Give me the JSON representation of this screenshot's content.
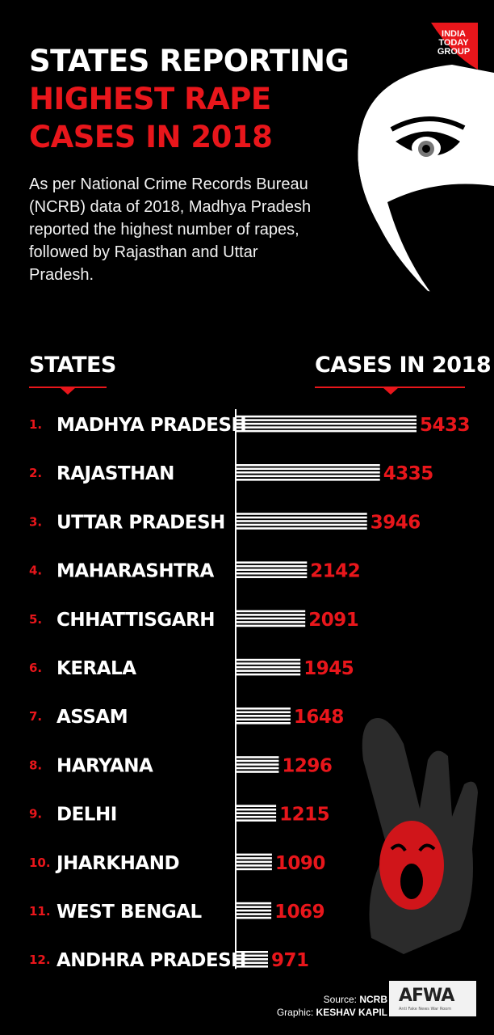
{
  "header": {
    "title_line1": "STATES REPORTING",
    "title_line2": "HIGHEST RAPE",
    "title_line3": "CASES IN 2018",
    "intro": "As per National Crime Records Bureau (NCRB) data of 2018, Madhya Pradesh reported the highest number of rapes, followed by Rajasthan and Uttar Pradesh."
  },
  "logo": {
    "text": "INDIA TODAY GROUP"
  },
  "footer": {
    "source_label": "Source:",
    "source_value": "NCRB",
    "graphic_label": "Graphic:",
    "graphic_value": "KESHAV KAPIL",
    "afwa_text": "AFWA",
    "afwa_tagline": "Anti Fake News War Room"
  },
  "colors": {
    "background": "#000000",
    "accent_red": "#e8161b",
    "text": "#ffffff"
  },
  "chart_data": {
    "type": "bar",
    "column_headers": [
      "STATES",
      "CASES IN 2018"
    ],
    "ranks": [
      "1.",
      "2.",
      "3.",
      "4.",
      "5.",
      "6.",
      "7.",
      "8.",
      "9.",
      "10.",
      "11.",
      "12."
    ],
    "categories": [
      "MADHYA PRADESH",
      "RAJASTHAN",
      "UTTAR PRADESH",
      "MAHARASHTRA",
      "CHHATTISGARH",
      "KERALA",
      "ASSAM",
      "HARYANA",
      "DELHI",
      "JHARKHAND",
      "WEST BENGAL",
      "ANDHRA PRADESH"
    ],
    "values": [
      5433,
      4335,
      3946,
      2142,
      2091,
      1945,
      1648,
      1296,
      1215,
      1090,
      1069,
      971
    ],
    "orientation": "horizontal",
    "xlim": [
      0,
      5433
    ]
  }
}
